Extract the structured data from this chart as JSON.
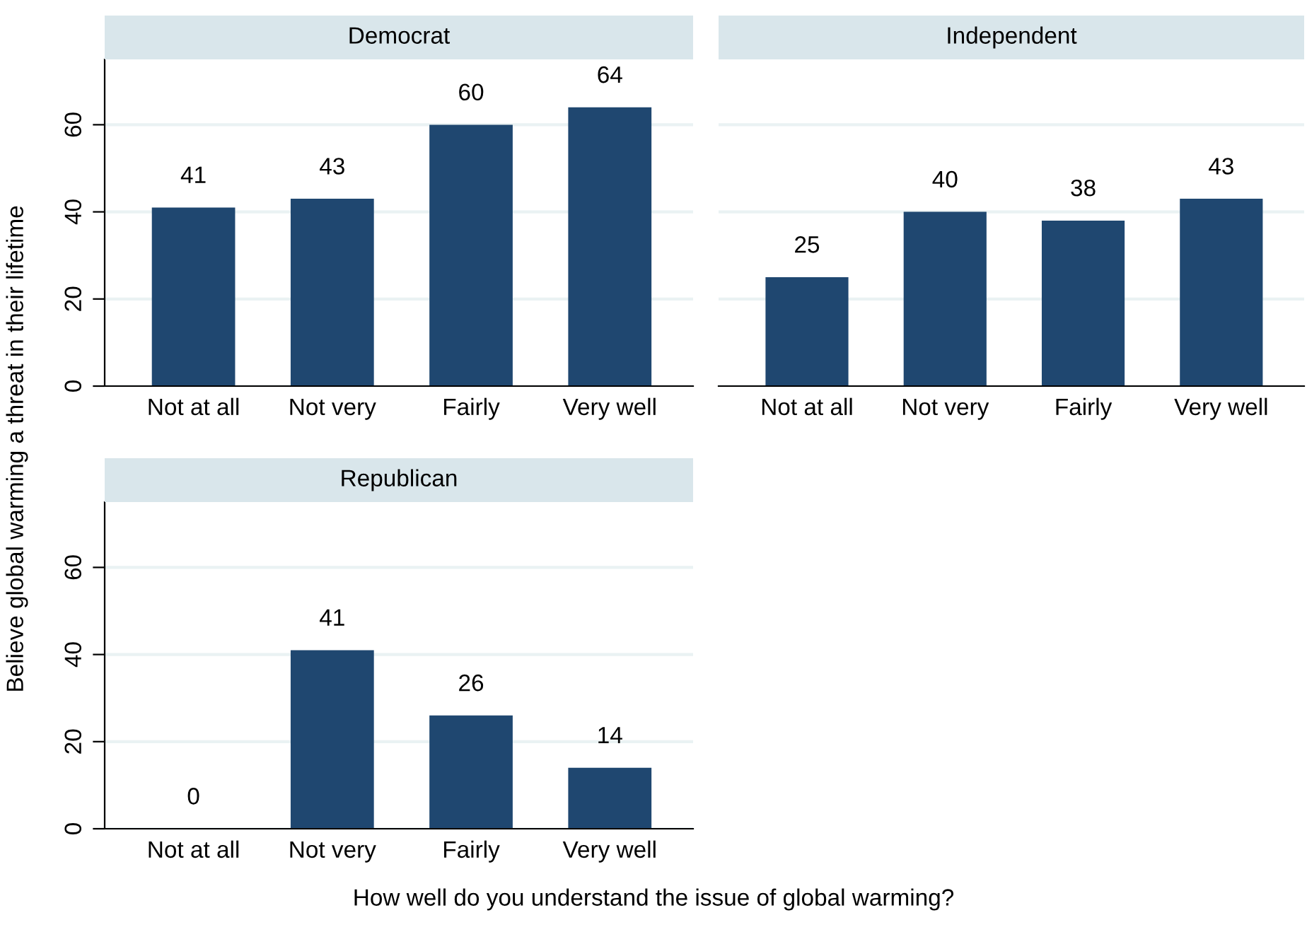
{
  "chart_data": [
    {
      "type": "bar",
      "title": "Democrat",
      "ylabel": "Believe global warming a threat in their lifetime",
      "categories": [
        "Not at all",
        "Not very",
        "Fairly",
        "Very well"
      ],
      "values": [
        41,
        43,
        60,
        64
      ],
      "color": "#1f4770",
      "ylim": [
        0,
        75
      ],
      "yticks": [
        0,
        20,
        40,
        60
      ],
      "grid": "y",
      "data_labels": true
    },
    {
      "type": "bar",
      "title": "Independent",
      "categories": [
        "Not at all",
        "Not very",
        "Fairly",
        "Very well"
      ],
      "values": [
        25,
        40,
        38,
        43
      ],
      "color": "#1f4770",
      "yticks": [
        0,
        20,
        40,
        60
      ],
      "grid": "y",
      "data_labels": true,
      "tick_labels": "x"
    },
    {
      "type": "bar",
      "title": "Republican",
      "xlabel": "How well do you understand the issue of global warming?",
      "categories": [
        "Not at all",
        "Not very",
        "Fairly",
        "Very well"
      ],
      "values": [
        0,
        41,
        26,
        14
      ],
      "color": "#1f4770",
      "ylim": [
        0,
        75
      ],
      "yticks": [
        0,
        20,
        40,
        60
      ],
      "grid": "y",
      "data_labels": true
    }
  ]
}
